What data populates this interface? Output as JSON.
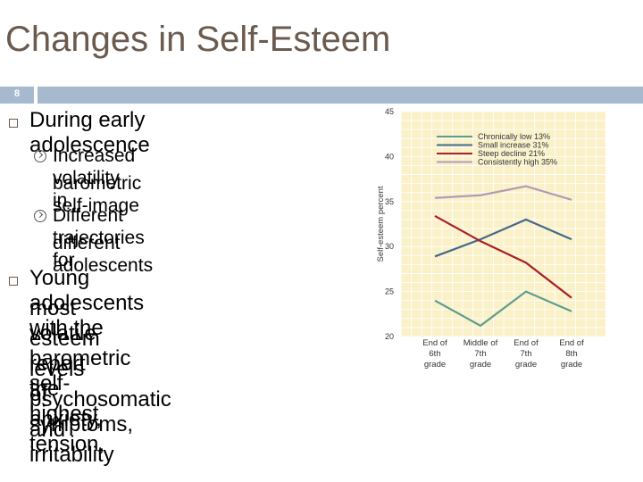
{
  "slide": {
    "title": "Changes in Self-Esteem",
    "number": "8"
  },
  "bullets": {
    "b1": "During early adolescence",
    "b1_sub1_line1": "Increased volatility in",
    "b1_sub1_line2": "barometric self-image",
    "b1_sub2_line1": "Different trajectories for",
    "b1_sub2_line2": "different adolescents",
    "b2_line1": "Young adolescents with the",
    "b2_line2": "most volatile barometric self-",
    "b2_line3": "esteem report the highest",
    "b2_line4": "levels of anxiety, tension,",
    "b2_line5": "psychosomatic symptoms,",
    "b2_line6": "and irritability"
  },
  "colors": {
    "plot_bg": "#faf1c8",
    "grid": "#ffffff",
    "chronically_low": "#5f9d8e",
    "small_increase": "#44698a",
    "steep_decline": "#a8202a",
    "consistently_high": "#b39bb6"
  },
  "chart_data": {
    "type": "line",
    "categories": [
      [
        "End of",
        "6th",
        "grade"
      ],
      [
        "Middle of",
        "7th",
        "grade"
      ],
      [
        "End of",
        "7th",
        "grade"
      ],
      [
        "End of",
        "8th",
        "grade"
      ]
    ],
    "ylabel": "Self-esteem percent",
    "ylim": [
      20,
      45
    ],
    "yticks": [
      "20",
      "25",
      "30",
      "35",
      "40",
      "45"
    ],
    "grid": true,
    "legend_position": "top-right",
    "series": [
      {
        "name": "Chronically low  13%",
        "values": [
          24,
          21.2,
          25,
          22.8
        ]
      },
      {
        "name": "Small increase  31%",
        "values": [
          28.9,
          30.8,
          33,
          30.8
        ]
      },
      {
        "name": "Steep decline  21%",
        "values": [
          33.4,
          30.6,
          28.2,
          24.3
        ]
      },
      {
        "name": "Consistently high  35%",
        "values": [
          35.4,
          35.7,
          36.7,
          35.2
        ]
      }
    ]
  }
}
